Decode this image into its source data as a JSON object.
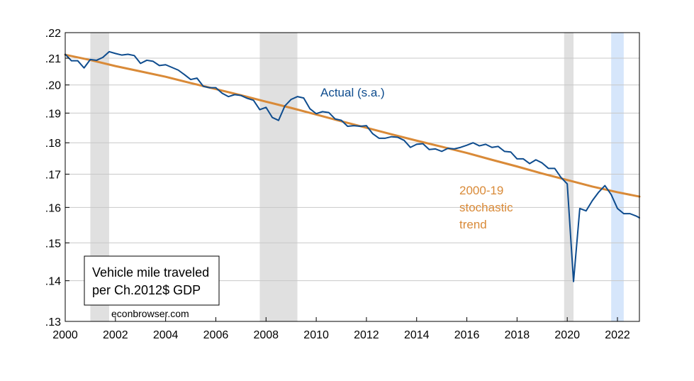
{
  "chart_data": {
    "type": "line",
    "y_scale": "log",
    "xlim": [
      2000.0,
      2022.875
    ],
    "ylim": [
      0.13,
      0.22
    ],
    "x_ticks": [
      2000,
      2002,
      2004,
      2006,
      2008,
      2010,
      2012,
      2014,
      2016,
      2018,
      2020,
      2022
    ],
    "x_tick_labels": [
      "2000",
      "2002",
      "2004",
      "2006",
      "2008",
      "2010",
      "2012",
      "2014",
      "2016",
      "2018",
      "2020",
      "2022"
    ],
    "y_ticks": [
      0.13,
      0.14,
      0.15,
      0.16,
      0.17,
      0.18,
      0.19,
      0.2,
      0.21,
      0.22
    ],
    "y_tick_labels": [
      ".13",
      ".14",
      ".15",
      ".16",
      ".17",
      ".18",
      ".19",
      ".20",
      ".21",
      ".22"
    ],
    "grid": "horizontal",
    "shaded_periods": [
      {
        "start": 2001.0,
        "end": 2001.75,
        "color": "#e0e0e0"
      },
      {
        "start": 2007.75,
        "end": 2009.25,
        "color": "#e0e0e0"
      },
      {
        "start": 2019.875,
        "end": 2020.25,
        "color": "#e0e0e0"
      },
      {
        "start": 2021.75,
        "end": 2022.25,
        "color": "#d6e6fb"
      }
    ],
    "series": [
      {
        "name": "Actual (s.a.)",
        "color": "#0e4c8e",
        "x": [
          2000.0,
          2000.25,
          2000.5,
          2000.75,
          2001.0,
          2001.25,
          2001.5,
          2001.75,
          2002.0,
          2002.25,
          2002.5,
          2002.75,
          2003.0,
          2003.25,
          2003.5,
          2003.75,
          2004.0,
          2004.25,
          2004.5,
          2004.75,
          2005.0,
          2005.25,
          2005.5,
          2005.75,
          2006.0,
          2006.25,
          2006.5,
          2006.75,
          2007.0,
          2007.25,
          2007.5,
          2007.75,
          2008.0,
          2008.25,
          2008.5,
          2008.75,
          2009.0,
          2009.25,
          2009.5,
          2009.75,
          2010.0,
          2010.25,
          2010.5,
          2010.75,
          2011.0,
          2011.25,
          2011.5,
          2011.75,
          2012.0,
          2012.25,
          2012.5,
          2012.75,
          2013.0,
          2013.25,
          2013.5,
          2013.75,
          2014.0,
          2014.25,
          2014.5,
          2014.75,
          2015.0,
          2015.25,
          2015.5,
          2015.75,
          2016.0,
          2016.25,
          2016.5,
          2016.75,
          2017.0,
          2017.25,
          2017.5,
          2017.75,
          2018.0,
          2018.25,
          2018.5,
          2018.75,
          2019.0,
          2019.25,
          2019.5,
          2019.75,
          2020.0,
          2020.25,
          2020.5,
          2020.75,
          2021.0,
          2021.25,
          2021.5,
          2021.75,
          2022.0,
          2022.25,
          2022.5,
          2022.75,
          2022.875
        ],
        "values": [
          0.2115,
          0.209,
          0.209,
          0.2063,
          0.2095,
          0.2092,
          0.2103,
          0.2125,
          0.2118,
          0.2112,
          0.2115,
          0.211,
          0.208,
          0.2092,
          0.2088,
          0.2072,
          0.2075,
          0.2065,
          0.2055,
          0.2038,
          0.202,
          0.2025,
          0.1995,
          0.199,
          0.199,
          0.197,
          0.1958,
          0.1965,
          0.1962,
          0.1952,
          0.1945,
          0.1912,
          0.192,
          0.1885,
          0.1875,
          0.1925,
          0.1948,
          0.1958,
          0.1953,
          0.1915,
          0.1898,
          0.1905,
          0.1902,
          0.188,
          0.1875,
          0.1855,
          0.1857,
          0.1855,
          0.1857,
          0.183,
          0.1815,
          0.1815,
          0.182,
          0.1818,
          0.1808,
          0.1785,
          0.1795,
          0.1797,
          0.1778,
          0.178,
          0.1772,
          0.1782,
          0.178,
          0.1785,
          0.1792,
          0.18,
          0.179,
          0.1795,
          0.1785,
          0.1788,
          0.1772,
          0.177,
          0.1748,
          0.1748,
          0.1733,
          0.1745,
          0.1735,
          0.1718,
          0.1718,
          0.169,
          0.167,
          0.1398,
          0.1597,
          0.159,
          0.162,
          0.1645,
          0.1665,
          0.1638,
          0.1597,
          0.1582,
          0.1582,
          0.1575,
          0.157
        ]
      },
      {
        "name": "2000-19 stochastic trend",
        "color": "#d98a38",
        "x": [
          2000.0,
          2001.0,
          2002.0,
          2003.0,
          2004.0,
          2005.0,
          2006.0,
          2007.0,
          2008.0,
          2009.0,
          2010.0,
          2011.0,
          2012.0,
          2013.0,
          2014.0,
          2015.0,
          2016.0,
          2017.0,
          2018.0,
          2019.0,
          2020.0,
          2021.0,
          2022.0,
          2022.875
        ],
        "values": [
          0.2113,
          0.2093,
          0.207,
          0.205,
          0.203,
          0.2007,
          0.1985,
          0.1963,
          0.194,
          0.1918,
          0.1895,
          0.1872,
          0.185,
          0.1828,
          0.1807,
          0.1787,
          0.1767,
          0.1745,
          0.1724,
          0.1702,
          0.1682,
          0.1662,
          0.1645,
          0.1632
        ]
      }
    ],
    "annotations": {
      "actual_label": "Actual (s.a.)",
      "trend_label_lines": [
        "2000-19",
        "stochastic",
        "trend"
      ],
      "box_lines": [
        "Vehicle mile traveled",
        "per Ch.2012$ GDP"
      ],
      "watermark": "econbrowser.com"
    }
  }
}
